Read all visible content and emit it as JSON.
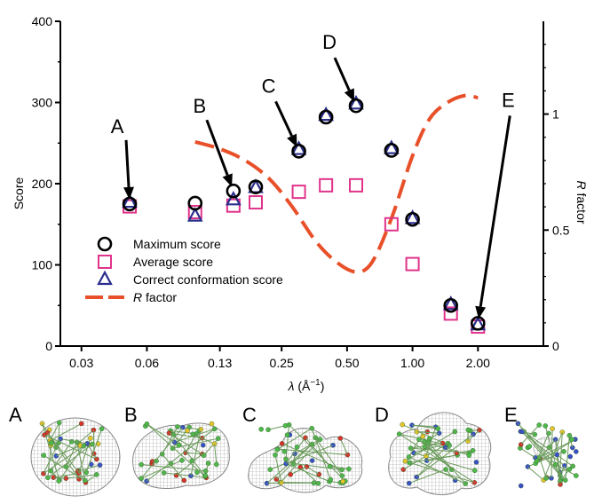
{
  "chart_data": {
    "type": "scatter",
    "xlabel_main": "λ",
    "xlabel_unit": "(Å",
    "xlabel_exp": "−1",
    "xlabel_close": ")",
    "ylabel": "Score",
    "y2label_italic": "R",
    "y2label_rest": " factor",
    "x_scale": "log",
    "x_ticks": [
      {
        "value": 0.03,
        "label": "0.03"
      },
      {
        "value": 0.06,
        "label": "0.06"
      },
      {
        "value": 0.13,
        "label": "0.13"
      },
      {
        "value": 0.25,
        "label": "0.25"
      },
      {
        "value": 0.5,
        "label": "0.50"
      },
      {
        "value": 1.0,
        "label": "1.00"
      },
      {
        "value": 2.0,
        "label": "2.00"
      }
    ],
    "xlim": [
      0.024,
      4.0
    ],
    "ylim": [
      0,
      400
    ],
    "y_ticks": [
      "0",
      "100",
      "200",
      "300",
      "400"
    ],
    "y_tick_values": [
      0,
      100,
      200,
      300,
      400
    ],
    "y2lim": [
      0,
      1.4
    ],
    "y2_ticks": [
      "0",
      "0.5",
      "1"
    ],
    "y2_tick_values": [
      0,
      0.5,
      1.0
    ],
    "grid": false,
    "legend_position": "lower-left",
    "series": [
      {
        "name": "Maximum score",
        "marker": "circle",
        "color": "#000000",
        "points": [
          [
            0.05,
            175
          ],
          [
            0.1,
            176
          ],
          [
            0.15,
            191
          ],
          [
            0.19,
            196
          ],
          [
            0.3,
            240
          ],
          [
            0.4,
            282
          ],
          [
            0.55,
            296
          ],
          [
            0.8,
            241
          ],
          [
            1.0,
            156
          ],
          [
            1.5,
            50
          ],
          [
            2.0,
            28
          ]
        ]
      },
      {
        "name": "Average score",
        "marker": "square",
        "color": "#e0338a",
        "points": [
          [
            0.05,
            172
          ],
          [
            0.1,
            165
          ],
          [
            0.15,
            173
          ],
          [
            0.19,
            177
          ],
          [
            0.3,
            190
          ],
          [
            0.4,
            198
          ],
          [
            0.55,
            198
          ],
          [
            0.8,
            150
          ],
          [
            1.0,
            101
          ],
          [
            1.5,
            40
          ],
          [
            2.0,
            24
          ]
        ]
      },
      {
        "name": "Correct conformation score",
        "marker": "triangle",
        "color": "#2b2e8c",
        "points": [
          [
            0.05,
            177
          ],
          [
            0.1,
            160
          ],
          [
            0.15,
            180
          ],
          [
            0.19,
            195
          ],
          [
            0.3,
            242
          ],
          [
            0.4,
            284
          ],
          [
            0.55,
            298
          ],
          [
            0.8,
            243
          ],
          [
            1.0,
            157
          ],
          [
            1.5,
            51
          ],
          [
            2.0,
            26
          ]
        ]
      },
      {
        "name": "R factor",
        "name_italic": "R",
        "name_rest": " factor",
        "marker": "line-dashed",
        "color": "#e8502a",
        "axis": "right",
        "points": [
          [
            0.1,
            0.88
          ],
          [
            0.13,
            0.85
          ],
          [
            0.17,
            0.8
          ],
          [
            0.22,
            0.72
          ],
          [
            0.28,
            0.6
          ],
          [
            0.36,
            0.45
          ],
          [
            0.45,
            0.36
          ],
          [
            0.55,
            0.32
          ],
          [
            0.65,
            0.36
          ],
          [
            0.8,
            0.55
          ],
          [
            1.0,
            0.82
          ],
          [
            1.2,
            0.98
          ],
          [
            1.45,
            1.05
          ],
          [
            1.75,
            1.08
          ],
          [
            2.0,
            1.07
          ]
        ]
      }
    ],
    "annotations": [
      {
        "label": "A",
        "x": 0.05,
        "y": 175
      },
      {
        "label": "B",
        "x": 0.15,
        "y": 191
      },
      {
        "label": "C",
        "x": 0.3,
        "y": 240
      },
      {
        "label": "D",
        "x": 0.55,
        "y": 296
      },
      {
        "label": "E",
        "x": 2.0,
        "y": 28
      }
    ]
  },
  "panels": [
    {
      "label": "A"
    },
    {
      "label": "B"
    },
    {
      "label": "C"
    },
    {
      "label": "D"
    },
    {
      "label": "E"
    }
  ],
  "colors": {
    "axis": "#000000",
    "mesh": "#9a9a9a",
    "atom_green": "#4fb84a",
    "atom_red": "#d8302a",
    "atom_blue": "#3a4fc8",
    "atom_yellow": "#e6c52a"
  }
}
